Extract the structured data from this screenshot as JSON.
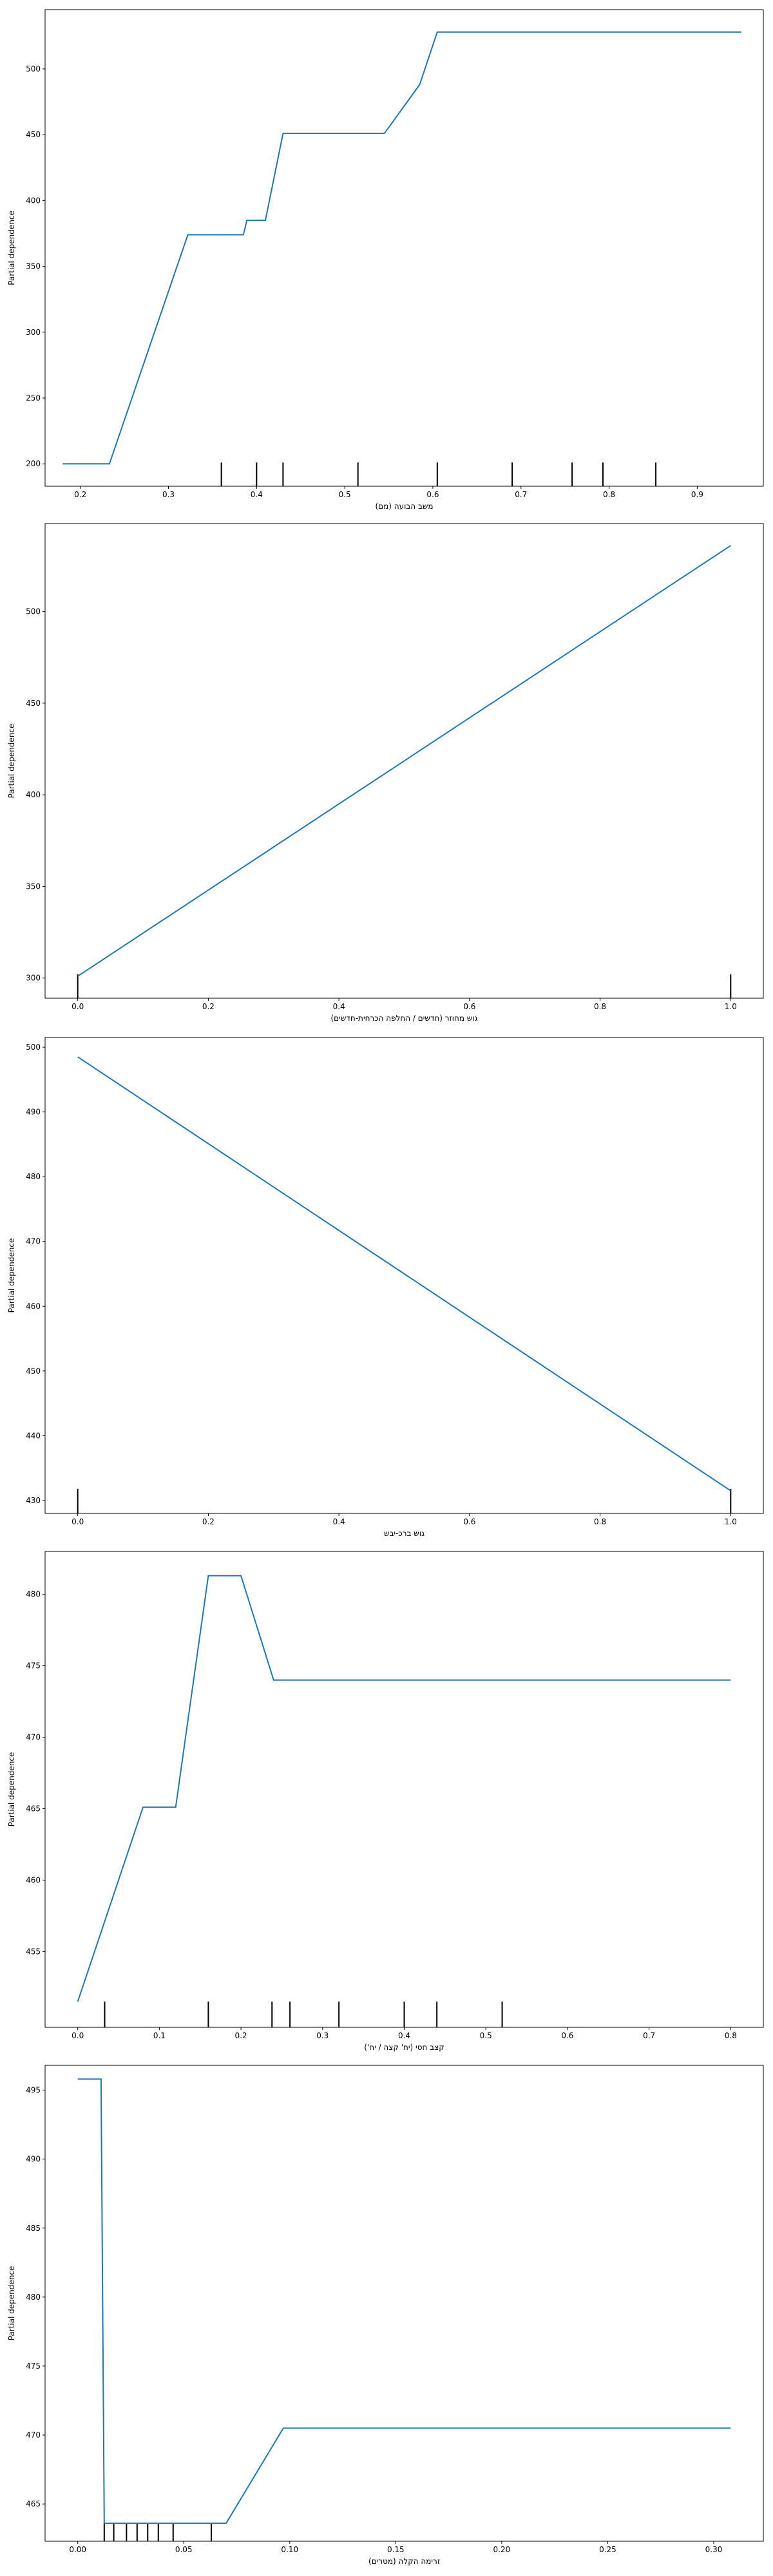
{
  "page": {
    "title": ""
  },
  "chart_data": [
    {
      "type": "line",
      "xlabel": "משב הבועה (מם)",
      "ylabel": "Partial dependence",
      "xlim": [
        0.16,
        0.975
      ],
      "ylim": [
        183,
        545
      ],
      "xticks": [
        0.2,
        0.3,
        0.4,
        0.5,
        0.6,
        0.7,
        0.8,
        0.9
      ],
      "xtick_labels": [
        "0.2",
        "0.3",
        "0.4",
        "0.5",
        "0.6",
        "0.7",
        "0.8",
        "0.9"
      ],
      "yticks": [
        200,
        250,
        300,
        350,
        400,
        450,
        500
      ],
      "ytick_labels": [
        "200",
        "250",
        "300",
        "350",
        "400",
        "450",
        "500"
      ],
      "series": [
        {
          "name": "",
          "color": "#1f77b4",
          "x": [
            0.18,
            0.233,
            0.322,
            0.385,
            0.389,
            0.41,
            0.43,
            0.545,
            0.585,
            0.605,
            0.95
          ],
          "y": [
            200,
            200,
            374,
            374,
            385,
            385,
            451,
            451,
            488,
            528,
            528
          ]
        }
      ],
      "deciles": [
        0.36,
        0.4,
        0.43,
        0.515,
        0.605,
        0.69,
        0.758,
        0.793,
        0.853
      ],
      "decile_ylim": [
        183,
        201
      ]
    },
    {
      "type": "line",
      "xlabel": "גוש מחוזר (חדשים / החלפה הכרחית-חדשים)",
      "ylabel": "Partial dependence",
      "xlim": [
        -0.05,
        1.05
      ],
      "ylim": [
        289,
        548
      ],
      "xticks": [
        0.0,
        0.2,
        0.4,
        0.6,
        0.8,
        1.0
      ],
      "xtick_labels": [
        "0.0",
        "0.2",
        "0.4",
        "0.6",
        "0.8",
        "1.0"
      ],
      "yticks": [
        300,
        350,
        400,
        450,
        500
      ],
      "ytick_labels": [
        "300",
        "350",
        "400",
        "450",
        "500"
      ],
      "series": [
        {
          "name": "",
          "color": "#1f77b4",
          "x": [
            0.0,
            1.0
          ],
          "y": [
            301,
            536
          ]
        }
      ],
      "deciles": [
        0.0,
        1.0
      ],
      "decile_ylim": [
        289,
        302
      ]
    },
    {
      "type": "line",
      "xlabel": "גוש ברכ-יבש",
      "ylabel": "Partial dependence",
      "xlim": [
        -0.05,
        1.05
      ],
      "ylim": [
        428,
        501.5
      ],
      "xticks": [
        0.0,
        0.2,
        0.4,
        0.6,
        0.8,
        1.0
      ],
      "xtick_labels": [
        "0.0",
        "0.2",
        "0.4",
        "0.6",
        "0.8",
        "1.0"
      ],
      "yticks": [
        430,
        440,
        450,
        460,
        470,
        480,
        490,
        500
      ],
      "ytick_labels": [
        "430",
        "440",
        "450",
        "460",
        "470",
        "480",
        "490",
        "500"
      ],
      "series": [
        {
          "name": "",
          "color": "#1f77b4",
          "x": [
            0.0,
            1.0
          ],
          "y": [
            498.5,
            431.5
          ]
        }
      ],
      "deciles": [
        0.0,
        1.0
      ],
      "decile_ylim": [
        428,
        431.8
      ]
    },
    {
      "type": "line",
      "xlabel": "קצב חסי (יח' קצה / יח')",
      "ylabel": "Partial dependence",
      "xlim": [
        -0.04,
        0.84
      ],
      "ylim": [
        449.7,
        483.0
      ],
      "xticks": [
        0.0,
        0.1,
        0.2,
        0.3,
        0.4,
        0.5,
        0.6,
        0.7,
        0.8
      ],
      "xtick_labels": [
        "0.0",
        "0.1",
        "0.2",
        "0.3",
        "0.4",
        "0.5",
        "0.6",
        "0.7",
        "0.8"
      ],
      "yticks": [
        455,
        460,
        465,
        470,
        475,
        480
      ],
      "ytick_labels": [
        "455",
        "460",
        "465",
        "470",
        "475",
        "480"
      ],
      "series": [
        {
          "name": "",
          "color": "#1f77b4",
          "x": [
            0.0,
            0.08,
            0.12,
            0.16,
            0.2,
            0.24,
            0.8
          ],
          "y": [
            451.5,
            465.1,
            465.1,
            481.3,
            481.3,
            474.0,
            474.0
          ]
        }
      ],
      "deciles": [
        0.033,
        0.16,
        0.238,
        0.26,
        0.32,
        0.4,
        0.44,
        0.52
      ],
      "decile_ylim": [
        449.7,
        451.5
      ]
    },
    {
      "type": "line",
      "xlabel": "זרימה הקלה (מטרים)",
      "ylabel": "Partial dependence",
      "xlim": [
        -0.0154,
        0.3234
      ],
      "ylim": [
        462.3,
        496.8
      ],
      "xticks": [
        0.0,
        0.05,
        0.1,
        0.15,
        0.2,
        0.25,
        0.3
      ],
      "xtick_labels": [
        "0.00",
        "0.05",
        "0.10",
        "0.15",
        "0.20",
        "0.25",
        "0.30"
      ],
      "yticks": [
        465,
        470,
        475,
        480,
        485,
        490,
        495
      ],
      "ytick_labels": [
        "465",
        "470",
        "475",
        "480",
        "485",
        "490",
        "495"
      ],
      "series": [
        {
          "name": "",
          "color": "#1f77b4",
          "x": [
            0.0,
            0.011,
            0.0125,
            0.05,
            0.07,
            0.097,
            0.308
          ],
          "y": [
            495.8,
            495.8,
            463.6,
            463.6,
            463.6,
            470.5,
            470.5
          ]
        }
      ],
      "deciles": [
        0.0125,
        0.017,
        0.023,
        0.028,
        0.033,
        0.038,
        0.045,
        0.063
      ],
      "decile_ylim": [
        462.3,
        463.6
      ]
    }
  ]
}
